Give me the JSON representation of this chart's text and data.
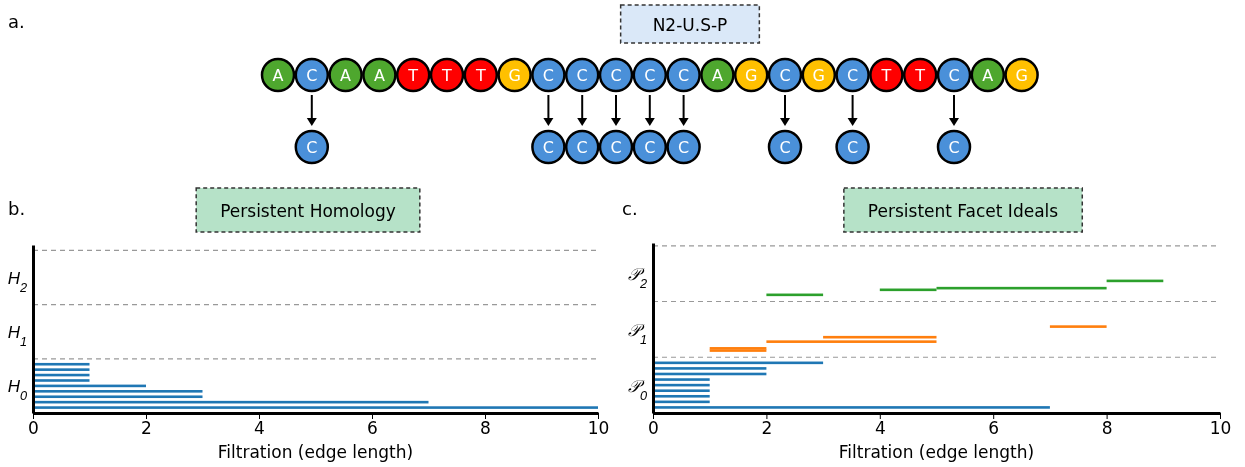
{
  "chart_data": [
    {
      "type": "other",
      "title": "N2-U.S-P",
      "annotations": [
        "a."
      ],
      "cell_labels": [
        [
          "A",
          "C",
          "A",
          "A",
          "T",
          "T",
          "T",
          "G",
          "C",
          "C",
          "C",
          "C",
          "C",
          "A",
          "G",
          "C",
          "G",
          "C",
          "T",
          "T",
          "C",
          "A",
          "G"
        ],
        [
          null,
          "C",
          null,
          null,
          null,
          null,
          null,
          null,
          "C",
          "C",
          "C",
          "C",
          "C",
          null,
          null,
          "C",
          null,
          "C",
          null,
          null,
          "C",
          null,
          null
        ]
      ],
      "cells": [
        [
          null,
          null,
          null,
          null,
          null,
          null,
          null,
          null,
          null,
          null,
          null,
          null,
          null,
          null,
          null,
          null,
          null,
          null,
          null,
          null,
          null,
          null,
          null
        ],
        [
          null,
          null,
          null,
          null,
          null,
          null,
          null,
          null,
          null,
          null,
          null,
          null,
          null,
          null,
          null,
          null,
          null,
          null,
          null,
          null,
          null,
          null,
          null
        ]
      ],
      "colors": [
        "#4ea72e",
        "#4a90d9",
        "#4ea72e",
        "#4ea72e",
        "#ff0000",
        "#ff0000",
        "#ff0000",
        "#ffc000",
        "#4a90d9",
        "#4a90d9",
        "#4a90d9",
        "#4a90d9",
        "#4a90d9",
        "#4ea72e",
        "#ffc000",
        "#4a90d9",
        "#ffc000",
        "#4a90d9",
        "#ff0000",
        "#ff0000",
        "#4a90d9",
        "#4ea72e",
        "#ffc000"
      ]
    },
    {
      "type": "bar",
      "orientation": "horizontal",
      "title": "Persistent Homology",
      "xlabel": "Filtration (edge length)",
      "annotations": [
        "b."
      ],
      "xlim": [
        0,
        10
      ],
      "xticks": [
        0,
        2,
        4,
        6,
        8,
        10
      ],
      "ylim": [
        0,
        3.1
      ],
      "yticks": [
        {
          "value": 0.5,
          "label": "H$_{0}$"
        },
        {
          "value": 1.5,
          "label": "H$_{1}$"
        },
        {
          "value": 2.5,
          "label": "H$_{2}$"
        }
      ],
      "ref_lines": [
        {
          "axis": "y",
          "value": 1,
          "color": "#999999",
          "line_style": "dashed"
        },
        {
          "axis": "y",
          "value": 2,
          "color": "#999999",
          "line_style": "dashed"
        },
        {
          "axis": "y",
          "value": 3,
          "color": "#999999",
          "line_style": "dashed"
        }
      ],
      "series": [
        {
          "color": "#1f77b4",
          "x": [
            0.9,
            0.8,
            0.7,
            0.6,
            0.5,
            0.4,
            0.3,
            0.2,
            0.1
          ],
          "base": [
            0,
            0,
            0,
            0,
            0,
            0,
            0,
            0,
            0
          ],
          "values": [
            1,
            1,
            1,
            1,
            2,
            3,
            3,
            7,
            10
          ]
        }
      ]
    },
    {
      "type": "bar",
      "orientation": "horizontal",
      "title": "Persistent Facet Ideals",
      "xlabel": "Filtration (edge length)",
      "annotations": [
        "c."
      ],
      "xlim": [
        0,
        10
      ],
      "xticks": [
        0,
        2,
        4,
        6,
        8,
        10
      ],
      "ylim": [
        0,
        3.05
      ],
      "yticks": [
        {
          "value": 0.5,
          "label": "𝒫$_{0}$"
        },
        {
          "value": 1.5,
          "label": "𝒫$_{1}$"
        },
        {
          "value": 2.5,
          "label": "𝒫$_{2}$"
        }
      ],
      "ref_lines": [
        {
          "axis": "y",
          "value": 1,
          "color": "#999999",
          "line_style": "dashed"
        },
        {
          "axis": "y",
          "value": 2,
          "color": "#999999",
          "line_style": "dashed"
        },
        {
          "axis": "y",
          "value": 3,
          "color": "#999999",
          "line_style": "dashed"
        }
      ],
      "series": [
        {
          "color": "#1f77b4",
          "x": [
            0.9,
            0.8,
            0.7,
            0.6,
            0.5,
            0.4,
            0.3,
            0.2,
            0.1
          ],
          "base": [
            0,
            0,
            0,
            0,
            0,
            0,
            0,
            0,
            0
          ],
          "values": [
            3,
            2,
            2,
            1,
            1,
            1,
            1,
            1,
            7
          ]
        },
        {
          "color": "#ff7f0e",
          "x": [
            1.12,
            1.16,
            1.28,
            1.36,
            1.55
          ],
          "base": [
            1,
            1,
            2,
            3,
            7
          ],
          "values": [
            1,
            1,
            3,
            2,
            1
          ]
        },
        {
          "color": "#2ca02c",
          "x": [
            2.12,
            2.21,
            2.24,
            2.37
          ],
          "base": [
            2,
            4,
            5,
            8
          ],
          "values": [
            1,
            1,
            3,
            1
          ]
        }
      ]
    }
  ]
}
